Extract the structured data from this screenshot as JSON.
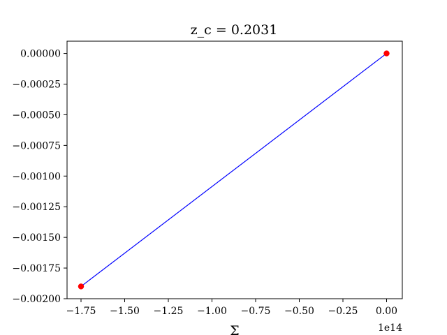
{
  "chart_data": {
    "type": "line",
    "title": "z_c = 0.2031",
    "xlabel": "Σ",
    "ylabel": "",
    "x_offset_label": "1e14",
    "xlim": [
      -1.83,
      0.09
    ],
    "ylim": [
      -0.002,
      0.0001
    ],
    "x_ticks": [
      -1.75,
      -1.5,
      -1.25,
      -1.0,
      -0.75,
      -0.5,
      -0.25,
      0.0
    ],
    "x_tick_labels": [
      "−1.75",
      "−1.50",
      "−1.25",
      "−1.00",
      "−0.75",
      "−0.50",
      "−0.25",
      "0.00"
    ],
    "y_ticks": [
      0.0,
      -0.00025,
      -0.0005,
      -0.00075,
      -0.001,
      -0.00125,
      -0.0015,
      -0.00175,
      -0.002
    ],
    "y_tick_labels": [
      "0.00000",
      "−0.00025",
      "−0.00050",
      "−0.00075",
      "−0.00100",
      "−0.00125",
      "−0.00150",
      "−0.00175",
      "−0.00200"
    ],
    "grid": false,
    "series": [
      {
        "x": [
          -1.75,
          0.0
        ],
        "y": [
          -0.0019,
          0.0
        ],
        "line_color": "#0000ff",
        "marker_color": "#ff0000"
      }
    ]
  }
}
